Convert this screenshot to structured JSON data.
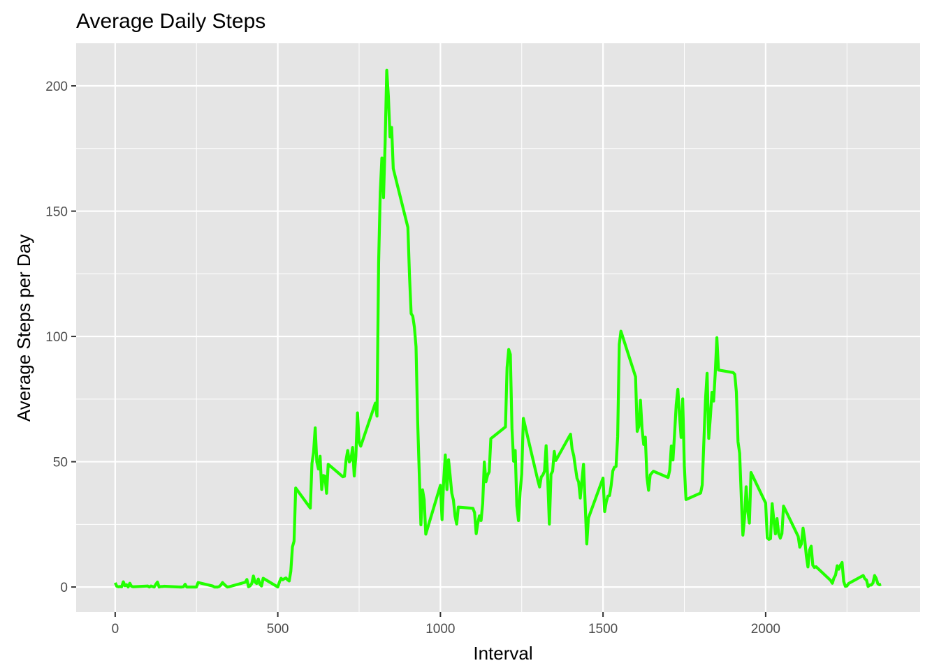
{
  "chart_data": {
    "type": "line",
    "title": "Average Daily Steps",
    "xlabel": "Interval",
    "ylabel": "Average Steps per Day",
    "xlim": [
      -120,
      2475
    ],
    "ylim": [
      -10,
      217
    ],
    "x_ticks": [
      0,
      500,
      1000,
      1500,
      2000
    ],
    "x_tick_labels": [
      "0",
      "500",
      "1000",
      "1500",
      "2000"
    ],
    "y_ticks": [
      0,
      50,
      100,
      150,
      200
    ],
    "y_tick_labels": [
      "0",
      "50",
      "100",
      "150",
      "200"
    ],
    "grid": true,
    "panel_color": "#e5e5e5",
    "grid_color": "#ffffff",
    "line_color": "#22ff00",
    "series": [
      {
        "x": [
          0,
          5,
          10,
          15,
          20,
          25,
          30,
          35,
          40,
          45,
          50,
          55,
          100,
          105,
          110,
          115,
          120,
          125,
          130,
          135,
          140,
          145,
          150,
          200,
          205,
          210,
          215,
          220,
          225,
          230,
          235,
          240,
          245,
          250,
          255,
          300,
          305,
          310,
          315,
          320,
          325,
          330,
          335,
          340,
          345,
          350,
          400,
          405,
          410,
          415,
          420,
          425,
          430,
          435,
          440,
          445,
          450,
          455,
          500,
          505,
          510,
          515,
          520,
          525,
          530,
          535,
          540,
          545,
          550,
          555,
          600,
          605,
          610,
          615,
          620,
          625,
          630,
          635,
          640,
          645,
          650,
          655,
          700,
          705,
          710,
          715,
          720,
          725,
          730,
          735,
          740,
          745,
          750,
          755,
          800,
          805,
          810,
          815,
          820,
          825,
          830,
          835,
          840,
          845,
          850,
          855,
          900,
          905,
          910,
          915,
          920,
          925,
          930,
          935,
          940,
          945,
          950,
          955,
          1000,
          1005,
          1010,
          1015,
          1020,
          1025,
          1030,
          1035,
          1040,
          1045,
          1050,
          1055,
          1100,
          1105,
          1110,
          1115,
          1120,
          1125,
          1130,
          1135,
          1140,
          1145,
          1150,
          1155,
          1200,
          1205,
          1210,
          1215,
          1220,
          1225,
          1230,
          1235,
          1240,
          1245,
          1250,
          1255,
          1300,
          1305,
          1310,
          1315,
          1320,
          1325,
          1330,
          1335,
          1340,
          1345,
          1350,
          1355,
          1400,
          1405,
          1410,
          1415,
          1420,
          1425,
          1430,
          1435,
          1440,
          1445,
          1450,
          1455,
          1500,
          1505,
          1510,
          1515,
          1520,
          1525,
          1530,
          1535,
          1540,
          1545,
          1550,
          1555,
          1600,
          1605,
          1610,
          1615,
          1620,
          1625,
          1630,
          1635,
          1640,
          1645,
          1650,
          1655,
          1700,
          1705,
          1710,
          1715,
          1720,
          1725,
          1730,
          1735,
          1740,
          1745,
          1750,
          1755,
          1800,
          1805,
          1810,
          1815,
          1820,
          1825,
          1830,
          1835,
          1840,
          1845,
          1850,
          1855,
          1900,
          1905,
          1910,
          1915,
          1920,
          1925,
          1930,
          1935,
          1940,
          1945,
          1950,
          1955,
          2000,
          2005,
          2010,
          2015,
          2020,
          2025,
          2030,
          2035,
          2040,
          2045,
          2050,
          2055,
          2100,
          2105,
          2110,
          2115,
          2120,
          2125,
          2130,
          2135,
          2140,
          2145,
          2150,
          2155,
          2200,
          2205,
          2210,
          2215,
          2220,
          2225,
          2230,
          2235,
          2240,
          2245,
          2250,
          2255,
          2300,
          2305,
          2310,
          2315,
          2320,
          2325,
          2330,
          2335,
          2340,
          2345,
          2350,
          2355
        ],
        "values": [
          1.7,
          0.3,
          0.1,
          0.2,
          0.1,
          2.1,
          0.5,
          0.9,
          0,
          1.5,
          0.3,
          0.1,
          0.4,
          0,
          0.4,
          0.2,
          0,
          1.1,
          2.0,
          0,
          0.2,
          0.2,
          0.3,
          0,
          0,
          0.1,
          1.1,
          0,
          0,
          0,
          0,
          0,
          0,
          0,
          1.8,
          0.4,
          0,
          0,
          0,
          0.2,
          0.8,
          1.8,
          1.1,
          0.5,
          0,
          0.1,
          1.9,
          3.0,
          0.1,
          0.5,
          1.4,
          4.4,
          2.0,
          1.4,
          3.2,
          1.1,
          0.4,
          3.5,
          0,
          2.0,
          3.5,
          2.9,
          3.3,
          3.6,
          2.9,
          2.4,
          6.3,
          16.0,
          18.3,
          39.5,
          31.5,
          49.3,
          53.8,
          63.5,
          49.9,
          47.1,
          52.2,
          38.9,
          44.5,
          44.2,
          37.4,
          49.0,
          44.0,
          44.2,
          50.8,
          54.5,
          49.9,
          50.9,
          55.7,
          44.3,
          52.3,
          69.5,
          57.8,
          56.2,
          73.4,
          68.2,
          129.4,
          157.5,
          171.2,
          155.4,
          177.3,
          206.2,
          195.9,
          179.6,
          183.4,
          167.0,
          143.5,
          124.0,
          109.1,
          108.1,
          103.7,
          95.9,
          66.2,
          45.2,
          24.8,
          38.8,
          34.9,
          21.1,
          40.6,
          26.9,
          42.4,
          52.7,
          38.9,
          50.8,
          44.3,
          37.4,
          34.7,
          28.3,
          25.1,
          31.9,
          31.4,
          29.7,
          21.3,
          25.5,
          28.4,
          26.5,
          33.4,
          49.9,
          42.0,
          44.6,
          46.0,
          59.2,
          63.9,
          87.6,
          94.8,
          92.8,
          63.4,
          50.2,
          54.5,
          32.4,
          26.5,
          37.7,
          45.1,
          67.3,
          42.3,
          39.9,
          43.9,
          44.7,
          46.2,
          56.4,
          42.8,
          25.1,
          45.0,
          46.2,
          54.1,
          50.5,
          61.0,
          55.0,
          52.4,
          47.7,
          43.4,
          41.9,
          35.5,
          42.4,
          49.0,
          33.5,
          17.2,
          27.5,
          43.5,
          30.1,
          34.0,
          36.3,
          36.5,
          40.5,
          46.3,
          47.8,
          48.1,
          60.1,
          96.9,
          102.1,
          83.9,
          62.1,
          64.1,
          74.5,
          63.2,
          56.9,
          59.8,
          43.9,
          38.6,
          44.7,
          45.5,
          46.2,
          43.7,
          46.6,
          56.3,
          50.7,
          61.2,
          72.7,
          78.9,
          68.9,
          59.7,
          75.1,
          48.3,
          34.9,
          37.5,
          40.7,
          58.0,
          74.7,
          85.3,
          59.3,
          67.8,
          77.7,
          74.2,
          85.3,
          99.5,
          86.6,
          85.6,
          84.9,
          77.8,
          58.0,
          53.4,
          36.3,
          20.7,
          27.4,
          40.0,
          30.2,
          25.5,
          45.7,
          33.5,
          19.6,
          19.0,
          19.3,
          33.3,
          26.8,
          21.2,
          27.3,
          21.3,
          19.5,
          21.3,
          32.3,
          20.2,
          15.9,
          17.2,
          23.5,
          19.2,
          12.5,
          8.0,
          14.7,
          16.3,
          8.7,
          7.8,
          8.1,
          2.6,
          1.5,
          3.6,
          4.8,
          8.5,
          7.1,
          8.7,
          9.8,
          2.2,
          0.3,
          0.4,
          1.4,
          4.6,
          3.3,
          2.8,
          0.2,
          0.8,
          0.8,
          1.6,
          4.6,
          3.4,
          1.3,
          0.9,
          1.1
        ]
      }
    ]
  }
}
